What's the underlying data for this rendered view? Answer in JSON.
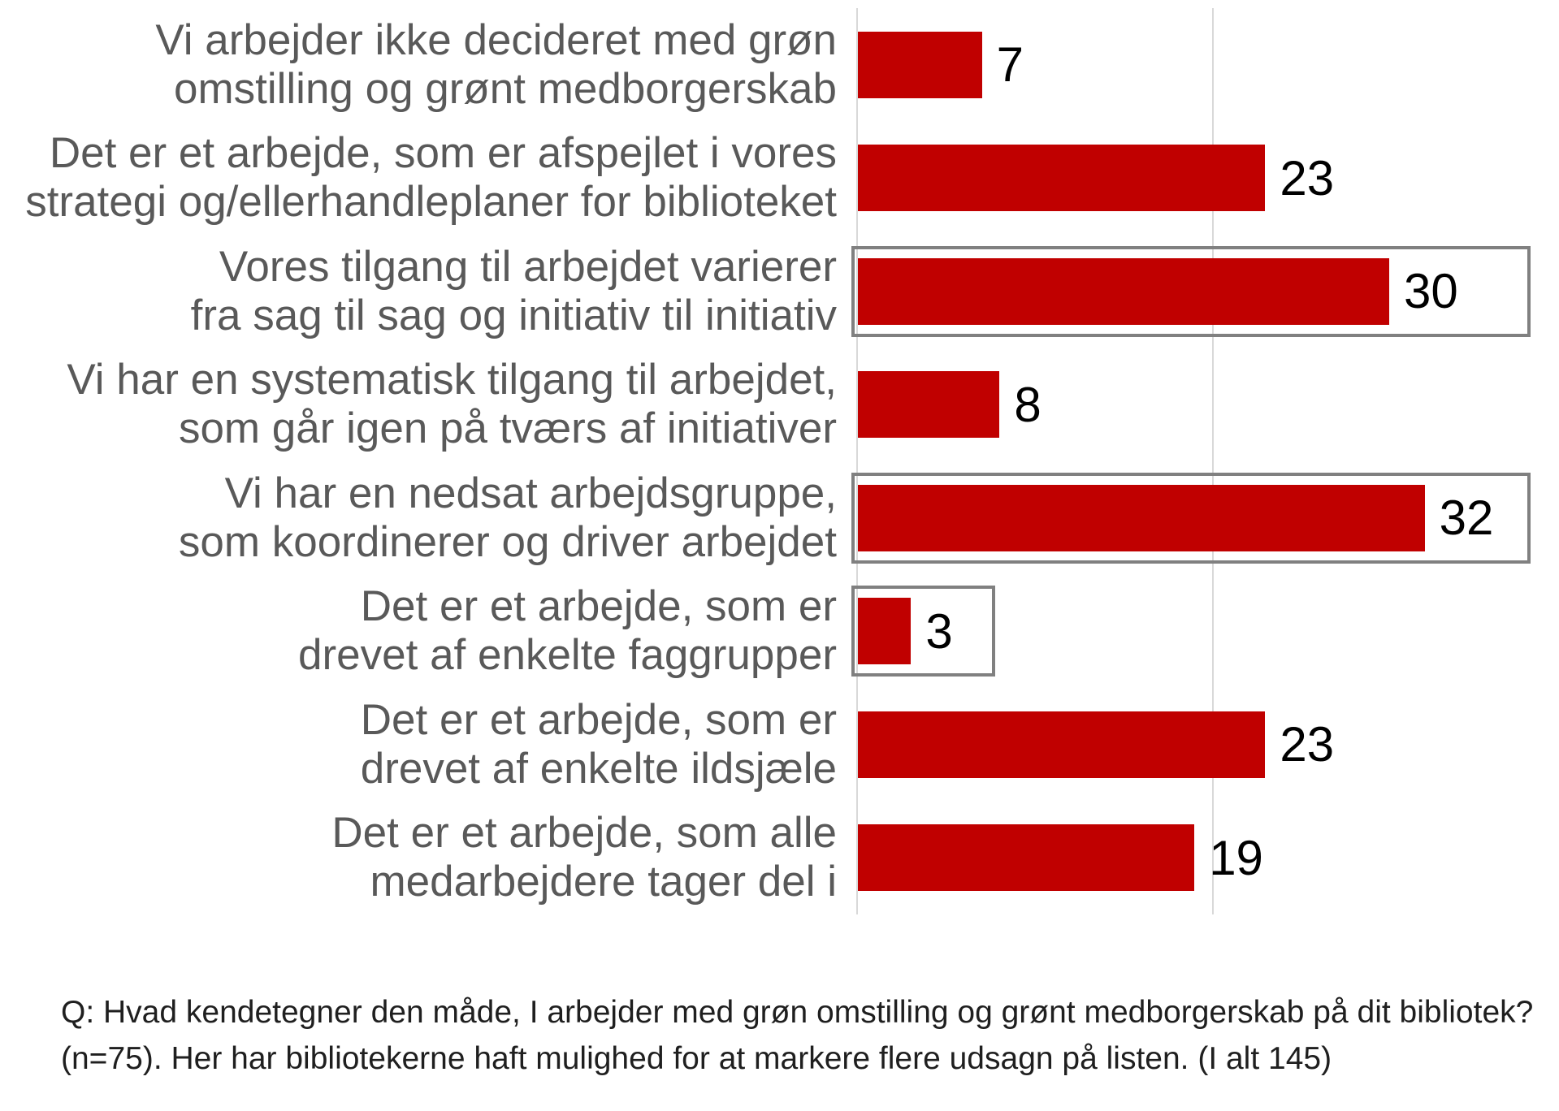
{
  "colors": {
    "bar": "#C00000",
    "highlight_box_border": "#808080",
    "gridline": "#D9D9D9",
    "category_label_text": "#595959",
    "value_label_text": "#000000",
    "footnote_text": "#1f1f1f"
  },
  "chart_data": {
    "type": "bar",
    "orientation": "horizontal",
    "title": "",
    "xlabel": "",
    "ylabel": "",
    "xlim": [
      0,
      40
    ],
    "gridlines_x": [
      0,
      20
    ],
    "legend": "none",
    "bar_color": "#C00000",
    "categories": [
      "Vi arbejder ikke decideret med grøn omstilling og grønt medborgerskab",
      "Det er et arbejde, som er afspejlet i vores strategi og/ellerhandleplaner for biblioteket",
      "Vores tilgang til arbejdet varierer fra sag til sag og initiativ til initiativ",
      "Vi har en systematisk tilgang til arbejdet, som går igen på tværs af initiativer",
      "Vi har en nedsat arbejdsgruppe, som koordinerer og driver arbejdet",
      "Det er et arbejde, som er drevet af enkelte faggrupper",
      "Det er et arbejde, som er drevet af enkelte ildsjæle",
      "Det er et arbejde, som alle medarbejdere tager del i"
    ],
    "values": [
      7,
      23,
      30,
      8,
      32,
      3,
      23,
      19
    ],
    "rows": [
      {
        "lines": [
          "Vi arbejder ikke decideret med grøn",
          "omstilling og grønt medborgerskab"
        ],
        "value": 7
      },
      {
        "lines": [
          "Det er et arbejde, som er afspejlet i vores",
          "strategi og/ellerhandleplaner for biblioteket"
        ],
        "value": 23
      },
      {
        "lines": [
          "Vores tilgang til arbejdet varierer",
          "fra sag til sag og initiativ til initiativ"
        ],
        "value": 30
      },
      {
        "lines": [
          "Vi har en systematisk tilgang til arbejdet,",
          "som går igen på tværs af initiativer"
        ],
        "value": 8
      },
      {
        "lines": [
          "Vi har en nedsat arbejdsgruppe,",
          "som koordinerer og driver arbejdet"
        ],
        "value": 32
      },
      {
        "lines": [
          "Det er et arbejde, som er",
          "drevet af enkelte faggrupper"
        ],
        "value": 3
      },
      {
        "lines": [
          "Det er et arbejde, som er",
          "drevet af enkelte ildsjæle"
        ],
        "value": 23
      },
      {
        "lines": [
          "Det er et arbejde, som alle",
          "medarbejdere tager del i"
        ],
        "value": 19
      }
    ],
    "highlight_boxes": [
      {
        "row_index": 2,
        "extent_units": 38
      },
      {
        "row_index": 4,
        "extent_units": 38
      },
      {
        "row_index": 5,
        "extent_units": 7.75
      }
    ]
  },
  "footnote": {
    "line1": "Q: Hvad kendetegner den måde, I arbejder med grøn omstilling og grønt medborgerskab på dit bibliotek?",
    "line2": "(n=75). Her har bibliotekerne haft mulighed for at markere flere udsagn på listen. (I alt 145)"
  }
}
